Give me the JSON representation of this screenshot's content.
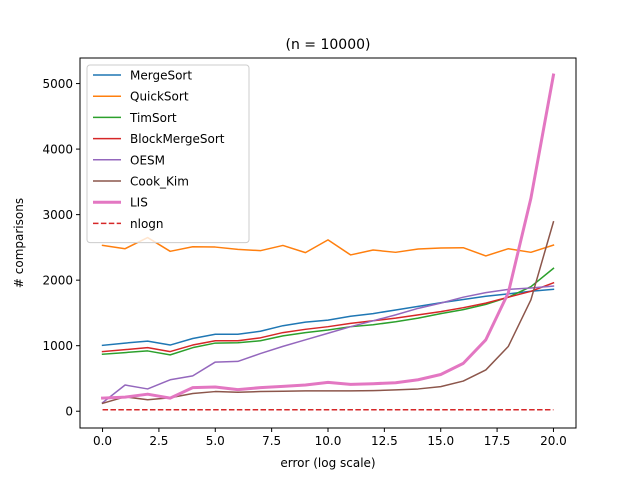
{
  "chart_data": {
    "type": "line",
    "title": "(n = 10000)",
    "xlabel": "error (log scale)",
    "ylabel": "# comparisons",
    "xlim": [
      -1.0,
      21.0
    ],
    "ylim": [
      -256,
      5390
    ],
    "xticks": [
      0.0,
      2.5,
      5.0,
      7.5,
      10.0,
      12.5,
      15.0,
      17.5,
      20.0
    ],
    "xtick_labels": [
      "0.0",
      "2.5",
      "5.0",
      "7.5",
      "10.0",
      "12.5",
      "15.0",
      "17.5",
      "20.0"
    ],
    "yticks": [
      0,
      1000,
      2000,
      3000,
      4000,
      5000
    ],
    "ytick_labels": [
      "0",
      "1000",
      "2000",
      "3000",
      "4000",
      "5000"
    ],
    "grid": false,
    "legend_position": "upper-left",
    "x": [
      0,
      1,
      2,
      3,
      4,
      5,
      6,
      7,
      8,
      9,
      10,
      11,
      12,
      13,
      14,
      15,
      16,
      17,
      18,
      19,
      20
    ],
    "series": [
      {
        "name": "MergeSort",
        "color": "#1f77b4",
        "style": "solid",
        "width": 1.5,
        "values": [
          1005,
          1040,
          1070,
          1010,
          1110,
          1175,
          1175,
          1220,
          1305,
          1360,
          1390,
          1450,
          1490,
          1545,
          1600,
          1655,
          1705,
          1755,
          1790,
          1830,
          1860
        ]
      },
      {
        "name": "QuickSort",
        "color": "#ff7f0e",
        "style": "solid",
        "width": 1.5,
        "values": [
          2530,
          2480,
          2650,
          2440,
          2510,
          2505,
          2470,
          2450,
          2530,
          2420,
          2615,
          2385,
          2460,
          2425,
          2475,
          2490,
          2495,
          2370,
          2480,
          2425,
          2535
        ]
      },
      {
        "name": "TimSort",
        "color": "#2ca02c",
        "style": "solid",
        "width": 1.5,
        "values": [
          870,
          895,
          920,
          860,
          970,
          1040,
          1045,
          1075,
          1150,
          1200,
          1240,
          1290,
          1320,
          1365,
          1420,
          1490,
          1550,
          1630,
          1740,
          1900,
          2180
        ]
      },
      {
        "name": "BlockMergeSort",
        "color": "#d62728",
        "style": "solid",
        "width": 1.5,
        "values": [
          910,
          940,
          970,
          910,
          1010,
          1075,
          1075,
          1120,
          1200,
          1250,
          1290,
          1340,
          1380,
          1420,
          1470,
          1520,
          1580,
          1650,
          1740,
          1830,
          1960
        ]
      },
      {
        "name": "OESM",
        "color": "#9467bd",
        "style": "solid",
        "width": 1.5,
        "values": [
          130,
          400,
          340,
          480,
          540,
          750,
          760,
          880,
          990,
          1090,
          1190,
          1290,
          1380,
          1470,
          1570,
          1650,
          1740,
          1810,
          1860,
          1880,
          1910
        ]
      },
      {
        "name": "Cook_Kim",
        "color": "#8c564b",
        "style": "solid",
        "width": 1.5,
        "values": [
          120,
          220,
          175,
          205,
          270,
          300,
          290,
          300,
          305,
          310,
          310,
          310,
          315,
          325,
          340,
          375,
          460,
          630,
          990,
          1700,
          2890
        ]
      },
      {
        "name": "LIS",
        "color": "#e377c2",
        "style": "solid",
        "width": 3,
        "values": [
          200,
          215,
          260,
          200,
          360,
          370,
          330,
          360,
          380,
          400,
          440,
          410,
          420,
          435,
          480,
          560,
          730,
          1090,
          1810,
          3250,
          5130
        ]
      },
      {
        "name": "nlogn",
        "color": "#d62728",
        "style": "dashed",
        "width": 1.5,
        "values": [
          22,
          22,
          22,
          22,
          22,
          22,
          22,
          22,
          22,
          22,
          22,
          22,
          22,
          22,
          22,
          22,
          22,
          22,
          22,
          22,
          22
        ]
      }
    ]
  }
}
